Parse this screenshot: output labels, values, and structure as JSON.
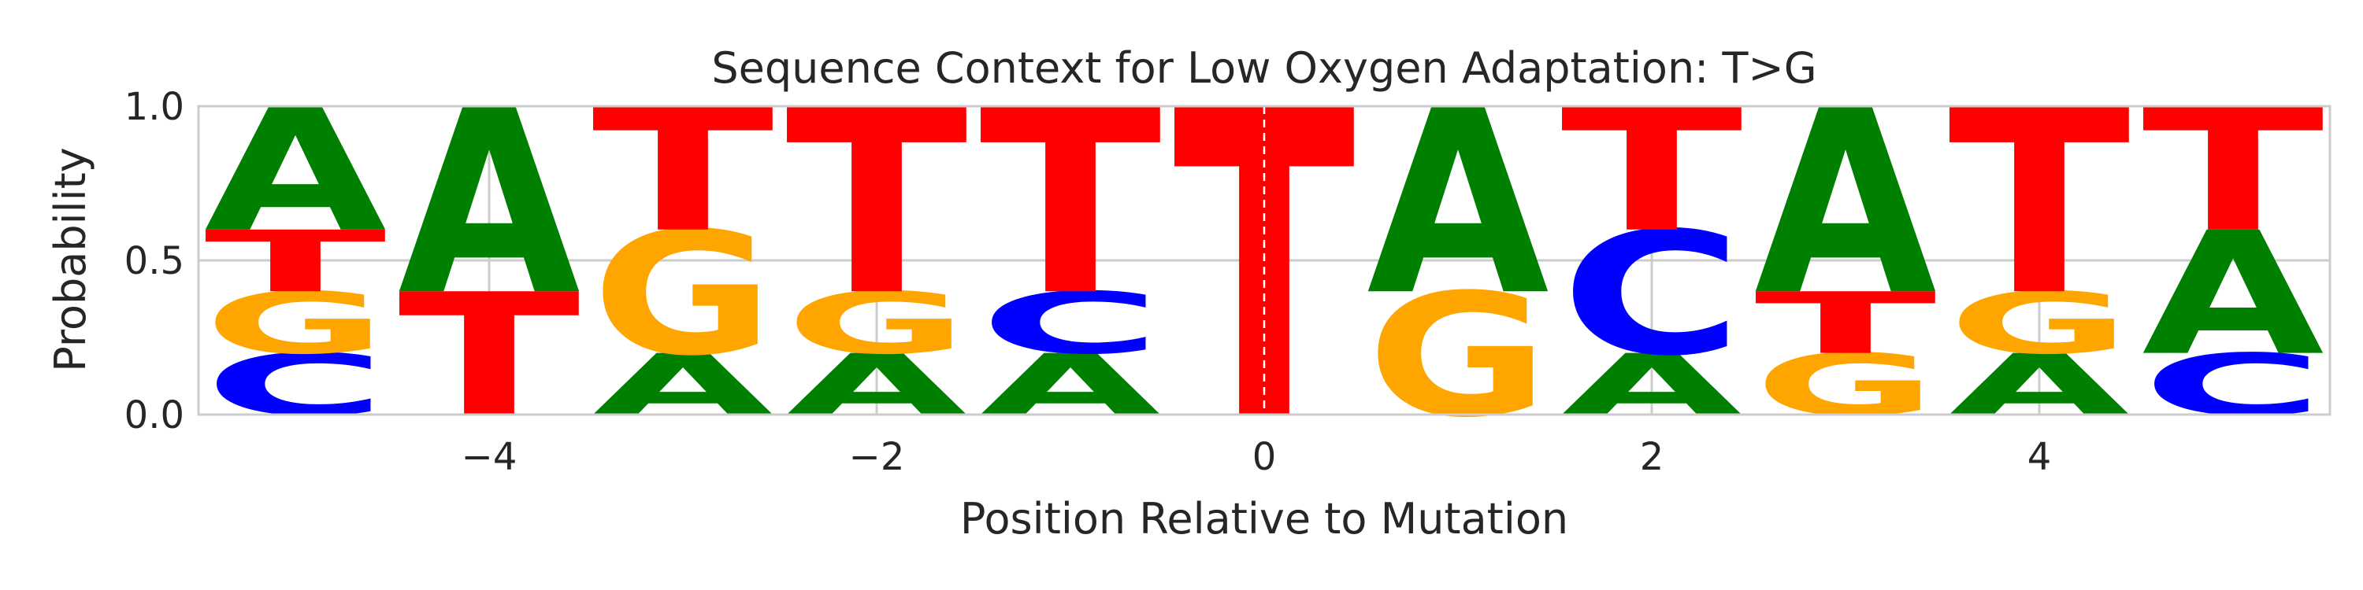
{
  "chart_data": {
    "type": "sequence-logo",
    "title": "Sequence Context for Low Oxygen Adaptation: T>G",
    "xlabel": "Position Relative to Mutation",
    "ylabel": "Probability",
    "xlim": [
      -5.5,
      5.5
    ],
    "ylim": [
      0,
      1
    ],
    "grid": true,
    "x_ticks": [
      {
        "value": -4,
        "label": "−4"
      },
      {
        "value": -2,
        "label": "−2"
      },
      {
        "value": 0,
        "label": "0"
      },
      {
        "value": 2,
        "label": "2"
      },
      {
        "value": 4,
        "label": "4"
      }
    ],
    "y_ticks": [
      {
        "value": 0,
        "label": "0.0"
      },
      {
        "value": 0.5,
        "label": "0.5"
      },
      {
        "value": 1,
        "label": "1.0"
      }
    ],
    "colors": {
      "A": "#008000",
      "C": "#0000ff",
      "G": "#ffa500",
      "T": "#ff0000"
    },
    "positions": [
      {
        "x": -5,
        "stack": [
          {
            "base": "C",
            "p": 0.2
          },
          {
            "base": "G",
            "p": 0.2
          },
          {
            "base": "T",
            "p": 0.2
          },
          {
            "base": "A",
            "p": 0.4
          }
        ]
      },
      {
        "x": -4,
        "stack": [
          {
            "base": "T",
            "p": 0.4
          },
          {
            "base": "A",
            "p": 0.6
          }
        ]
      },
      {
        "x": -3,
        "stack": [
          {
            "base": "A",
            "p": 0.2
          },
          {
            "base": "G",
            "p": 0.4
          },
          {
            "base": "T",
            "p": 0.4
          }
        ]
      },
      {
        "x": -2,
        "stack": [
          {
            "base": "A",
            "p": 0.2
          },
          {
            "base": "G",
            "p": 0.2
          },
          {
            "base": "T",
            "p": 0.6
          }
        ]
      },
      {
        "x": -1,
        "stack": [
          {
            "base": "A",
            "p": 0.2
          },
          {
            "base": "C",
            "p": 0.2
          },
          {
            "base": "T",
            "p": 0.6
          }
        ]
      },
      {
        "x": 0,
        "stack": [
          {
            "base": "T",
            "p": 1.0
          }
        ]
      },
      {
        "x": 1,
        "stack": [
          {
            "base": "G",
            "p": 0.4
          },
          {
            "base": "A",
            "p": 0.6
          }
        ]
      },
      {
        "x": 2,
        "stack": [
          {
            "base": "A",
            "p": 0.2
          },
          {
            "base": "C",
            "p": 0.4
          },
          {
            "base": "T",
            "p": 0.4
          }
        ]
      },
      {
        "x": 3,
        "stack": [
          {
            "base": "G",
            "p": 0.2
          },
          {
            "base": "T",
            "p": 0.2
          },
          {
            "base": "A",
            "p": 0.6
          }
        ]
      },
      {
        "x": 4,
        "stack": [
          {
            "base": "A",
            "p": 0.2
          },
          {
            "base": "G",
            "p": 0.2
          },
          {
            "base": "T",
            "p": 0.6
          }
        ]
      },
      {
        "x": 5,
        "stack": [
          {
            "base": "C",
            "p": 0.2
          },
          {
            "base": "A",
            "p": 0.4
          },
          {
            "base": "T",
            "p": 0.4
          }
        ]
      }
    ]
  }
}
